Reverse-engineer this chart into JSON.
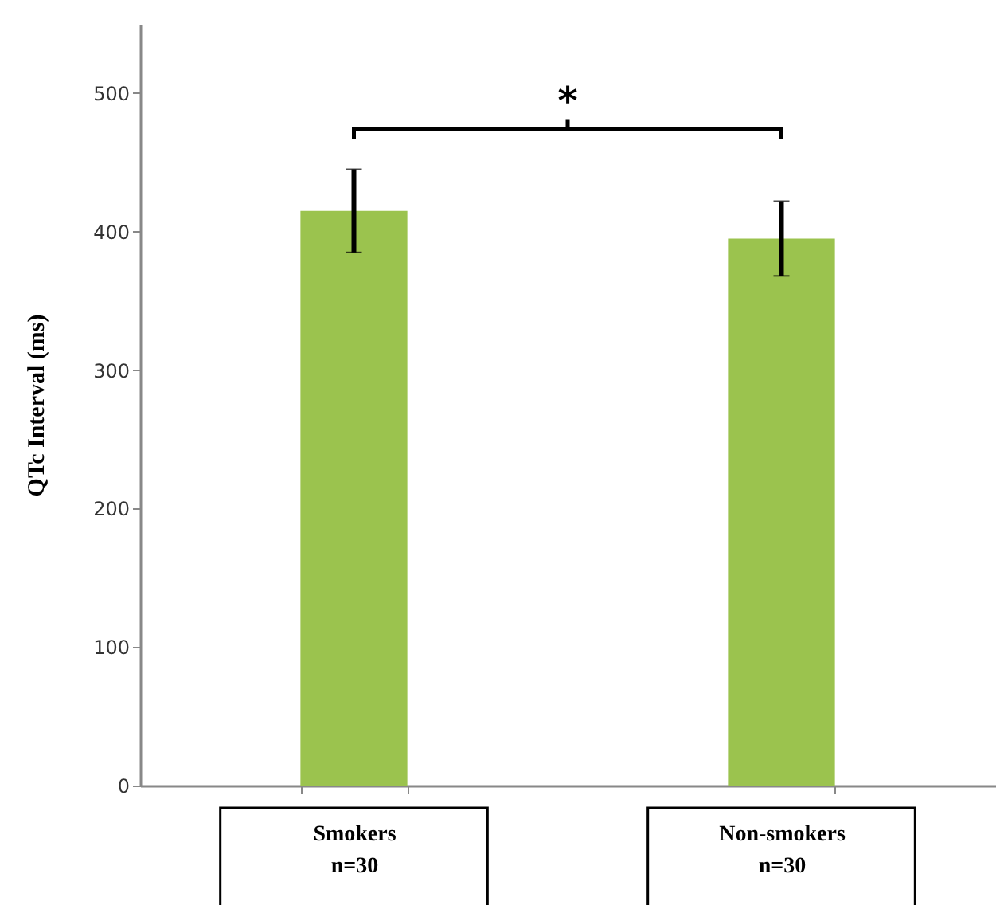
{
  "chart_data": {
    "type": "bar",
    "ylabel": "QTc Interval (ms)",
    "categories": [
      "Smokers\nn=30",
      "Non-smokers\nn=30"
    ],
    "values": [
      415,
      395
    ],
    "errors": [
      30,
      27
    ],
    "color": "#9bc34e",
    "ylim": [
      0,
      550
    ],
    "yticks": [
      0,
      100,
      200,
      300,
      400,
      500
    ],
    "grid": false,
    "annotations": [
      "*"
    ]
  }
}
